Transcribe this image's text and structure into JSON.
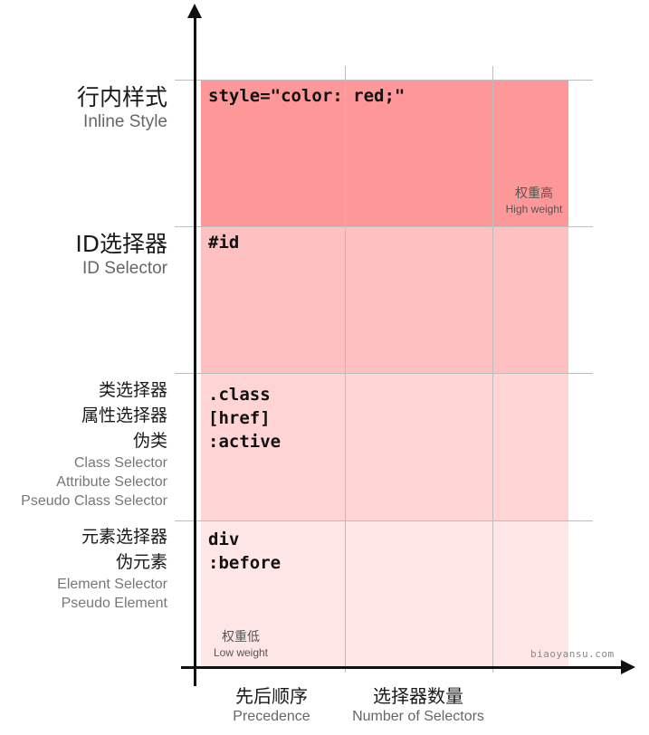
{
  "rows": [
    {
      "zh": "行内样式",
      "en": "Inline Style",
      "code": [
        "style=\"color: red;\""
      ],
      "color": "#fe9898"
    },
    {
      "zh": "ID选择器",
      "en": "ID Selector",
      "code": [
        "#id"
      ],
      "color": "#fec0c0"
    },
    {
      "zh_lines": [
        "类选择器",
        "属性选择器",
        "伪类"
      ],
      "en_lines": [
        "Class Selector",
        "Attribute Selector",
        "Pseudo Class Selector"
      ],
      "code": [
        ".class",
        "[href]",
        ":active"
      ],
      "color": "#fed4d4"
    },
    {
      "zh_lines": [
        "元素选择器",
        "伪元素"
      ],
      "en_lines": [
        "Element Selector",
        "Pseudo Element"
      ],
      "code": [
        "div",
        ":before"
      ],
      "color": "#ffe6e6"
    }
  ],
  "high_weight": {
    "zh": "权重高",
    "en": "High weight"
  },
  "low_weight": {
    "zh": "权重低",
    "en": "Low weight"
  },
  "x_labels": [
    {
      "zh": "先后顺序",
      "en": "Precedence"
    },
    {
      "zh": "选择器数量",
      "en": "Number of Selectors"
    }
  ],
  "watermark": "biaoyansu.com"
}
